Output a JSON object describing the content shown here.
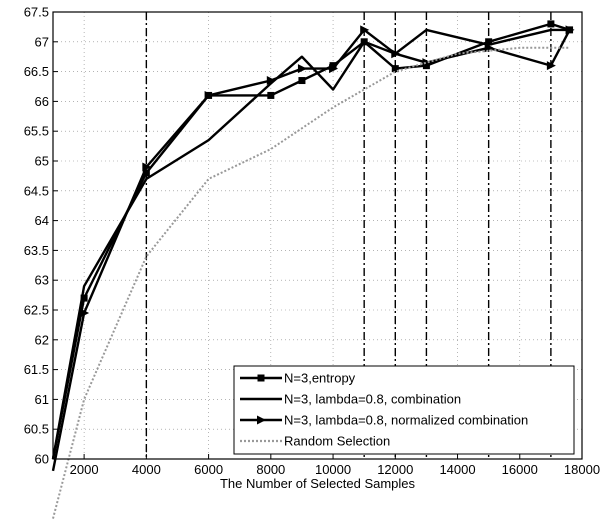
{
  "chart_data": {
    "type": "line",
    "title": "",
    "xlabel": "The Number of Selected Samples",
    "ylabel": "",
    "xlim": [
      1000,
      18000
    ],
    "ylim": [
      60,
      67.5
    ],
    "xticks": [
      2000,
      4000,
      6000,
      8000,
      10000,
      12000,
      14000,
      16000,
      18000
    ],
    "yticks": [
      60,
      60.5,
      61,
      61.5,
      62,
      62.5,
      63,
      63.5,
      64,
      64.5,
      65,
      65.5,
      66,
      66.5,
      67,
      67.5
    ],
    "grid": true,
    "legend_position": "lower-right",
    "vertical_reference_lines": {
      "x_values": [
        4000,
        11000,
        12000,
        13000,
        15000,
        17000
      ],
      "style": "dash-dot"
    },
    "series": [
      {
        "name": "N=3,entropy",
        "style": "solid",
        "marker": "square",
        "color": "#000000",
        "x": [
          1000,
          2000,
          4000,
          6000,
          8000,
          9000,
          10000,
          11000,
          12000,
          13000,
          15000,
          17000,
          17600
        ],
        "y": [
          60.0,
          62.7,
          64.8,
          66.1,
          66.1,
          66.35,
          66.6,
          67.0,
          66.55,
          66.6,
          67.0,
          67.3,
          67.2
        ]
      },
      {
        "name": "N=3, lambda=0.8, combination",
        "style": "solid",
        "marker": "none",
        "color": "#000000",
        "x": [
          1000,
          2000,
          4000,
          6000,
          8000,
          9000,
          10000,
          11000,
          12000,
          13000,
          15000,
          17000,
          17600
        ],
        "y": [
          60.0,
          62.9,
          64.7,
          65.35,
          66.3,
          66.75,
          66.2,
          67.0,
          66.8,
          67.2,
          66.95,
          67.2,
          67.2
        ]
      },
      {
        "name": "N=3, lambda=0.8, normalized combination",
        "style": "solid",
        "marker": "triangle-right",
        "color": "#000000",
        "x": [
          1000,
          2000,
          4000,
          6000,
          8000,
          9000,
          10000,
          11000,
          12000,
          13000,
          15000,
          17000,
          17600
        ],
        "y": [
          59.8,
          62.45,
          64.9,
          66.1,
          66.35,
          66.55,
          66.55,
          67.2,
          66.8,
          66.65,
          66.9,
          66.6,
          67.2
        ]
      },
      {
        "name": "Random Selection",
        "style": "dotted",
        "marker": "none",
        "color": "#999999",
        "x": [
          1000,
          2000,
          4000,
          6000,
          8000,
          10000,
          12000,
          14000,
          16000,
          17600
        ],
        "y": [
          59.0,
          61.0,
          63.4,
          64.7,
          65.2,
          65.9,
          66.5,
          66.8,
          66.9,
          66.9
        ]
      }
    ]
  }
}
